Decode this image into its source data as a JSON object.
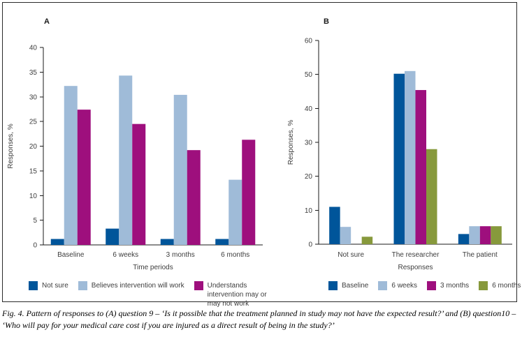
{
  "figure": {
    "caption": "Fig. 4. Pattern of responses to (A) question 9 – ‘Is it possible that the treatment planned in study may not have the expected result?’ and (B) question10 – ‘Who will pay for your medical care cost if you are injured as a direct result of being in the study?’"
  },
  "colors": {
    "dark_blue": "#00559a",
    "light_blue": "#9fbbd8",
    "magenta": "#9e0f7d",
    "olive_green": "#87993c",
    "axis": "#1a1a1a",
    "text": "#3d3d3d"
  },
  "chart_data": [
    {
      "type": "bar",
      "title": "A",
      "categories": [
        "Baseline",
        "6 weeks",
        "3 months",
        "6 months"
      ],
      "series": [
        {
          "name": "Not sure",
          "color": "#00559a",
          "values": [
            1.2,
            3.3,
            1.2,
            1.2
          ]
        },
        {
          "name": "Believes intervention will work",
          "color": "#9fbbd8",
          "values": [
            32.2,
            34.3,
            30.4,
            13.2
          ]
        },
        {
          "name": "Understands intervention may or may not work",
          "color": "#9e0f7d",
          "values": [
            27.4,
            24.5,
            19.2,
            21.3
          ]
        }
      ],
      "xlabel": "Time periods",
      "ylabel": "Responses, %",
      "ylim": [
        0,
        40
      ],
      "ytick_step": 5,
      "grid": false,
      "legend_position": "bottom"
    },
    {
      "type": "bar",
      "title": "B",
      "categories": [
        "Not sure",
        "The researcher",
        "The patient"
      ],
      "series": [
        {
          "name": "Baseline",
          "color": "#00559a",
          "values": [
            11.0,
            50.2,
            3.0
          ]
        },
        {
          "name": "6 weeks",
          "color": "#9fbbd8",
          "values": [
            5.1,
            51.0,
            5.3
          ]
        },
        {
          "name": "3 months",
          "color": "#9e0f7d",
          "values": [
            0,
            45.4,
            5.3
          ]
        },
        {
          "name": "6 months",
          "color": "#87993c",
          "values": [
            2.2,
            28.0,
            5.3
          ]
        }
      ],
      "xlabel": "Responses",
      "ylabel": "Responses, %",
      "ylim": [
        0,
        60
      ],
      "ytick_step": 10,
      "grid": false,
      "legend_position": "bottom"
    }
  ]
}
